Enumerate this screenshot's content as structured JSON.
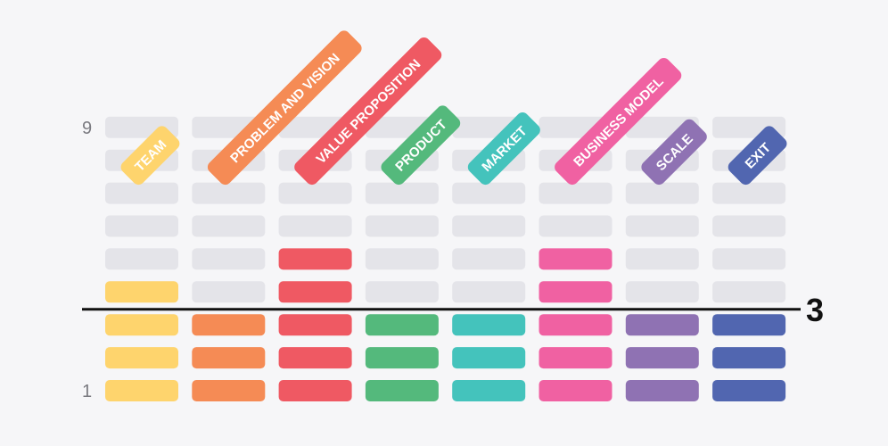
{
  "chart_data": {
    "type": "bar",
    "title": "",
    "ylim": [
      1,
      9
    ],
    "y_tick_labels": [
      "9",
      "1"
    ],
    "threshold": {
      "value": 3,
      "label": "3"
    },
    "categories": [
      "TEAM",
      "PROBLEM AND VISION",
      "VALUE PROPOSITION",
      "PRODUCT",
      "MARKET",
      "BUSINESS MODEL",
      "SCALE",
      "EXIT"
    ],
    "values": [
      4,
      3,
      5,
      3,
      3,
      5,
      3,
      3
    ],
    "colors": [
      "#fed46d",
      "#f58b55",
      "#ef5963",
      "#54b97c",
      "#44c3bc",
      "#f061a2",
      "#8f72b3",
      "#5166b0"
    ],
    "empty_color": "#e4e4e9",
    "grid": false,
    "legend": "none"
  }
}
